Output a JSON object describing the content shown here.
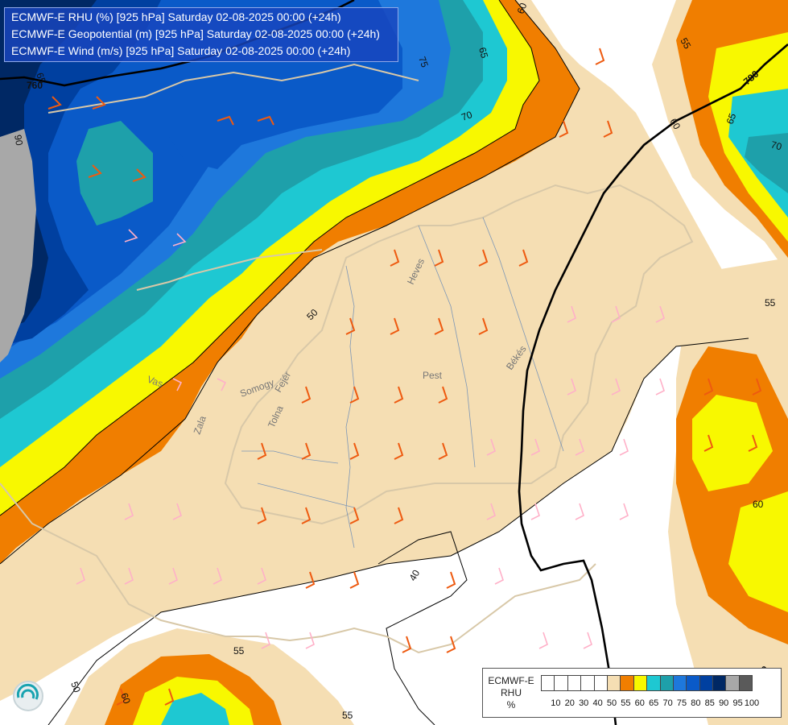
{
  "header": {
    "line1": "ECMWF-E RHU (%) [925 hPa] Saturday 02-08-2025 00:00 (+24h)",
    "line2": "ECMWF-E Geopotential (m) [925 hPa] Saturday 02-08-2025 00:00 (+24h)",
    "line3": "ECMWF-E Wind (m/s) [925 hPa] Saturday 02-08-2025 00:00 (+24h)"
  },
  "legend": {
    "title_model": "ECMWF-E",
    "title_var": "RHU",
    "title_unit": "%",
    "swatch_colors": [
      "#ffffff",
      "#ffffff",
      "#ffffff",
      "#ffffff",
      "#ffffff",
      "#f5deb3",
      "#f07e00",
      "#f8f800",
      "#1ec8d2",
      "#1ea0aa",
      "#1e78dc",
      "#0a5ac8",
      "#0040a0",
      "#002864",
      "#a8a8a8",
      "#5a5a5a"
    ],
    "tick_labels": [
      "10",
      "20",
      "30",
      "40",
      "50",
      "55",
      "60",
      "65",
      "70",
      "75",
      "80",
      "85",
      "90",
      "95",
      "100"
    ]
  },
  "map": {
    "rhu_contour_labels": [
      "50",
      "40",
      "55",
      "55",
      "60",
      "60",
      "65",
      "70",
      "75",
      "65",
      "90",
      "70",
      "60",
      "55",
      "50",
      "65",
      "60",
      "55"
    ],
    "geopotential_labels": [
      "760",
      "780",
      "780"
    ],
    "place_labels": [
      "Heves",
      "Pest",
      "Békés",
      "Fejér",
      "Somogy",
      "Tolna",
      "Zala",
      "Vas"
    ],
    "wind_barb_color_low": "#ffb0c8",
    "wind_barb_color_high": "#ee5a10"
  },
  "colors": {
    "brand_title_bg": "#1846be",
    "geopotential_line": "#000000",
    "border_line": "#d8c8a8"
  },
  "icons": {
    "logo": "ecmwf-logo-icon"
  }
}
